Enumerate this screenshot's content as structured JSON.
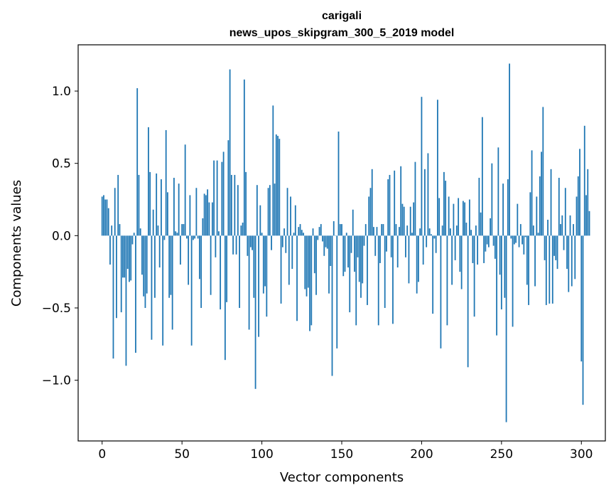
{
  "chart_data": {
    "type": "bar",
    "title_lines": [
      "carigali",
      "news_upos_skipgram_300_5_2019 model"
    ],
    "xlabel": "Vector components",
    "ylabel": "Components values",
    "xlim": [
      -15,
      315
    ],
    "ylim": [
      -1.42,
      1.32
    ],
    "xticks": [
      {
        "value": 0,
        "label": "0"
      },
      {
        "value": 50,
        "label": "50"
      },
      {
        "value": 100,
        "label": "100"
      },
      {
        "value": 150,
        "label": "150"
      },
      {
        "value": 200,
        "label": "200"
      },
      {
        "value": 250,
        "label": "250"
      },
      {
        "value": 300,
        "label": "300"
      }
    ],
    "yticks": [
      {
        "value": -1.0,
        "label": "−1.0"
      },
      {
        "value": -0.5,
        "label": "−0.5"
      },
      {
        "value": 0.0,
        "label": "0.0"
      },
      {
        "value": 0.5,
        "label": "0.5"
      },
      {
        "value": 1.0,
        "label": "1.0"
      }
    ],
    "grid": false,
    "bar_color": "#1f77b4",
    "values": [
      0.27,
      0.28,
      0.25,
      0.25,
      0.19,
      -0.2,
      0.07,
      -0.85,
      0.33,
      -0.57,
      0.42,
      0.08,
      -0.53,
      -0.29,
      -0.29,
      -0.9,
      -0.23,
      -0.32,
      -0.31,
      -0.06,
      0.02,
      -0.81,
      1.02,
      0.42,
      0.05,
      -0.27,
      -0.42,
      -0.5,
      -0.4,
      0.75,
      0.44,
      -0.72,
      0.18,
      -0.43,
      0.43,
      0.07,
      -0.22,
      0.39,
      -0.76,
      -0.03,
      0.73,
      0.3,
      -0.43,
      -0.41,
      -0.65,
      0.4,
      0.03,
      0.02,
      0.36,
      -0.2,
      0.08,
      0.08,
      0.63,
      -0.02,
      -0.34,
      0.28,
      -0.76,
      -0.03,
      -0.02,
      0.33,
      -0.02,
      -0.3,
      -0.5,
      0.12,
      0.29,
      0.28,
      0.32,
      0.23,
      -0.41,
      0.23,
      0.52,
      -0.15,
      0.52,
      0.03,
      -0.51,
      0.51,
      0.58,
      -0.86,
      -0.46,
      0.66,
      1.15,
      0.42,
      -0.13,
      0.42,
      -0.13,
      0.35,
      -0.5,
      0.07,
      0.09,
      1.08,
      0.44,
      -0.14,
      -0.65,
      -0.08,
      -0.1,
      -0.43,
      -1.06,
      0.35,
      -0.7,
      0.21,
      0.02,
      -0.4,
      -0.35,
      -0.56,
      0.33,
      0.35,
      -0.1,
      0.9,
      0.36,
      0.7,
      0.69,
      0.67,
      -0.47,
      -0.08,
      0.05,
      -0.12,
      0.33,
      -0.34,
      0.27,
      -0.23,
      0.02,
      0.21,
      -0.59,
      0.06,
      0.08,
      0.04,
      0.02,
      -0.37,
      -0.42,
      -0.36,
      -0.66,
      -0.62,
      0.05,
      -0.26,
      -0.41,
      -0.03,
      0.06,
      0.08,
      -0.04,
      -0.14,
      -0.08,
      -0.09,
      -0.4,
      -0.21,
      -0.97,
      0.1,
      0.0,
      -0.78,
      0.72,
      0.08,
      0.08,
      -0.28,
      -0.25,
      0.02,
      -0.22,
      -0.53,
      -0.12,
      0.18,
      -0.25,
      -0.62,
      -0.15,
      -0.32,
      -0.43,
      -0.33,
      -0.07,
      0.08,
      -0.48,
      0.27,
      0.33,
      0.46,
      0.06,
      -0.14,
      0.06,
      -0.62,
      -0.19,
      0.08,
      0.08,
      -0.5,
      -0.11,
      0.39,
      0.42,
      -0.15,
      -0.61,
      0.45,
      0.08,
      -0.22,
      0.06,
      0.48,
      0.22,
      0.2,
      -0.15,
      0.07,
      -0.33,
      0.2,
      0.02,
      0.23,
      0.51,
      -0.4,
      -0.32,
      0.05,
      0.96,
      -0.2,
      0.46,
      -0.08,
      0.57,
      0.05,
      0.01,
      -0.54,
      -0.02,
      -0.12,
      0.94,
      0.26,
      -0.78,
      0.07,
      0.44,
      0.38,
      -0.62,
      0.27,
      0.05,
      -0.34,
      0.22,
      -0.17,
      0.07,
      0.26,
      -0.25,
      -0.37,
      0.24,
      0.23,
      0.09,
      -0.91,
      0.25,
      0.04,
      -0.19,
      -0.56,
      0.07,
      -0.2,
      0.4,
      0.16,
      0.82,
      -0.19,
      -0.11,
      -0.06,
      -0.08,
      0.12,
      0.5,
      -0.07,
      -0.16,
      -0.69,
      0.61,
      -0.27,
      -0.51,
      0.36,
      -0.43,
      -1.29,
      0.39,
      1.19,
      -0.02,
      -0.63,
      -0.06,
      -0.05,
      0.22,
      -0.08,
      0.08,
      -0.06,
      -0.13,
      -0.01,
      -0.34,
      -0.48,
      0.3,
      0.59,
      0.07,
      -0.35,
      0.27,
      0.02,
      0.41,
      0.58,
      0.89,
      -0.17,
      -0.48,
      0.11,
      -0.47,
      0.46,
      -0.47,
      -0.14,
      -0.17,
      -0.23,
      0.4,
      0.08,
      0.14,
      -0.1,
      0.33,
      -0.23,
      -0.39,
      0.14,
      -0.35,
      0.08,
      -0.3,
      0.27,
      0.41,
      0.6,
      -0.87,
      -1.17,
      0.76,
      0.28,
      0.46,
      0.17
    ]
  }
}
